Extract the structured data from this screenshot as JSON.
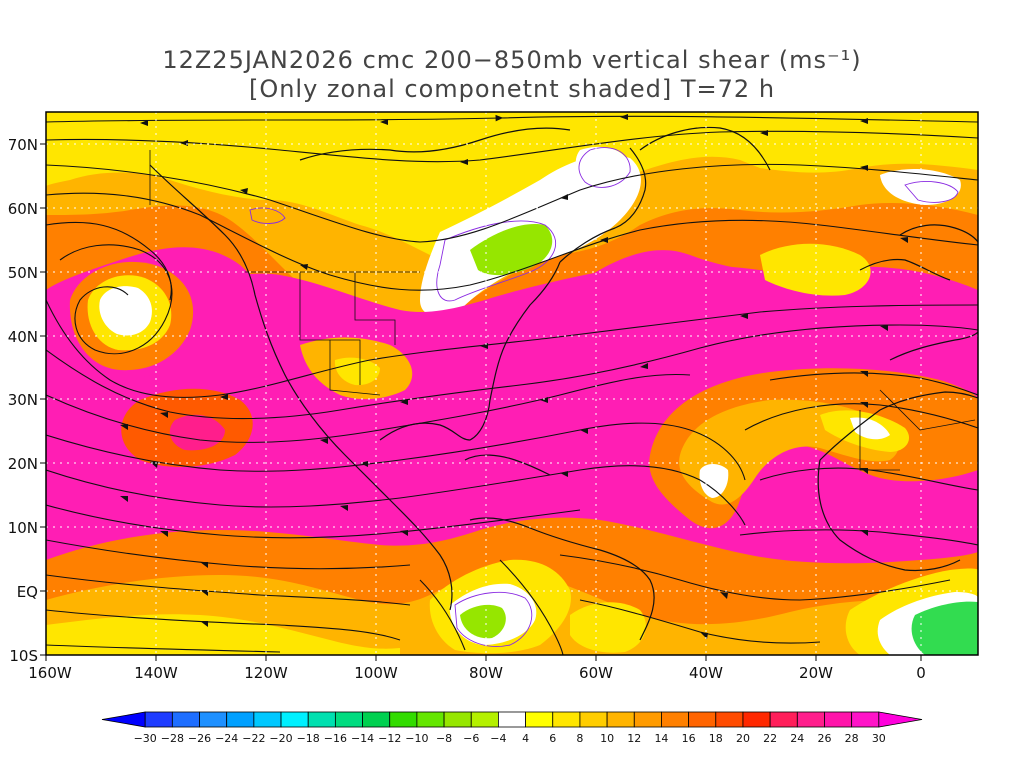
{
  "title": {
    "line1": "12Z25JAN2026 cmc 200−850mb vertical shear (ms⁻¹)",
    "line2": "[Only zonal componetnt shaded] T=72 h"
  },
  "axes": {
    "lat_labels": [
      "70N",
      "60N",
      "50N",
      "40N",
      "30N",
      "20N",
      "10N",
      "EQ",
      "10S"
    ],
    "lon_labels": [
      "160W",
      "140W",
      "120W",
      "100W",
      "80W",
      "60W",
      "40W",
      "20W",
      "0"
    ]
  },
  "colorbar": {
    "labels": [
      "−30",
      "−28",
      "−26",
      "−24",
      "−22",
      "−20",
      "−18",
      "−16",
      "−14",
      "−12",
      "−10",
      "−8",
      "−6",
      "−4",
      "4",
      "6",
      "8",
      "10",
      "12",
      "14",
      "16",
      "18",
      "20",
      "22",
      "24",
      "26",
      "28",
      "30"
    ],
    "colors": [
      "#0000ff",
      "#1e3cff",
      "#1e6eff",
      "#1e90ff",
      "#00a0ff",
      "#00c8ff",
      "#00f0ff",
      "#00e0b0",
      "#00dc80",
      "#00d050",
      "#32dc00",
      "#64e600",
      "#96e600",
      "#b4f000",
      "#ffffff",
      "#ffff00",
      "#ffe600",
      "#ffcd00",
      "#ffb400",
      "#ff9b00",
      "#ff8000",
      "#ff6400",
      "#ff4b00",
      "#ff2800",
      "#ff1e5a",
      "#ff1e8c",
      "#ff14aa",
      "#ff14c8",
      "#ff00dc"
    ]
  }
}
